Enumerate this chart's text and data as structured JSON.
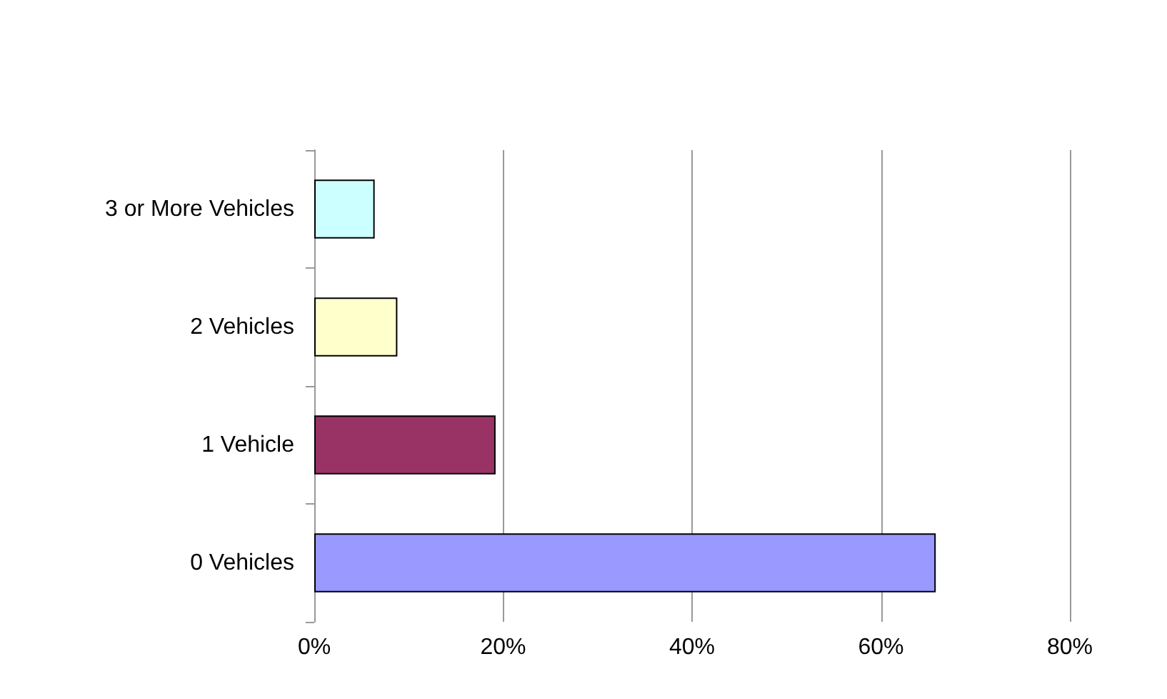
{
  "chart_data": {
    "type": "bar",
    "orientation": "horizontal",
    "categories": [
      "3 or More Vehicles",
      "2 Vehicles",
      "1 Vehicle",
      "0 Vehicles"
    ],
    "values": [
      6.4,
      8.8,
      19.2,
      65.8
    ],
    "colors": [
      "#ccffff",
      "#ffffcc",
      "#993366",
      "#9999ff"
    ],
    "xlim": [
      0,
      80
    ],
    "xticks": [
      {
        "value": 0,
        "label": "0%"
      },
      {
        "value": 20,
        "label": "20%"
      },
      {
        "value": 40,
        "label": "40%"
      },
      {
        "value": 60,
        "label": "60%"
      },
      {
        "value": 80,
        "label": "80%"
      }
    ],
    "grid": "x"
  }
}
